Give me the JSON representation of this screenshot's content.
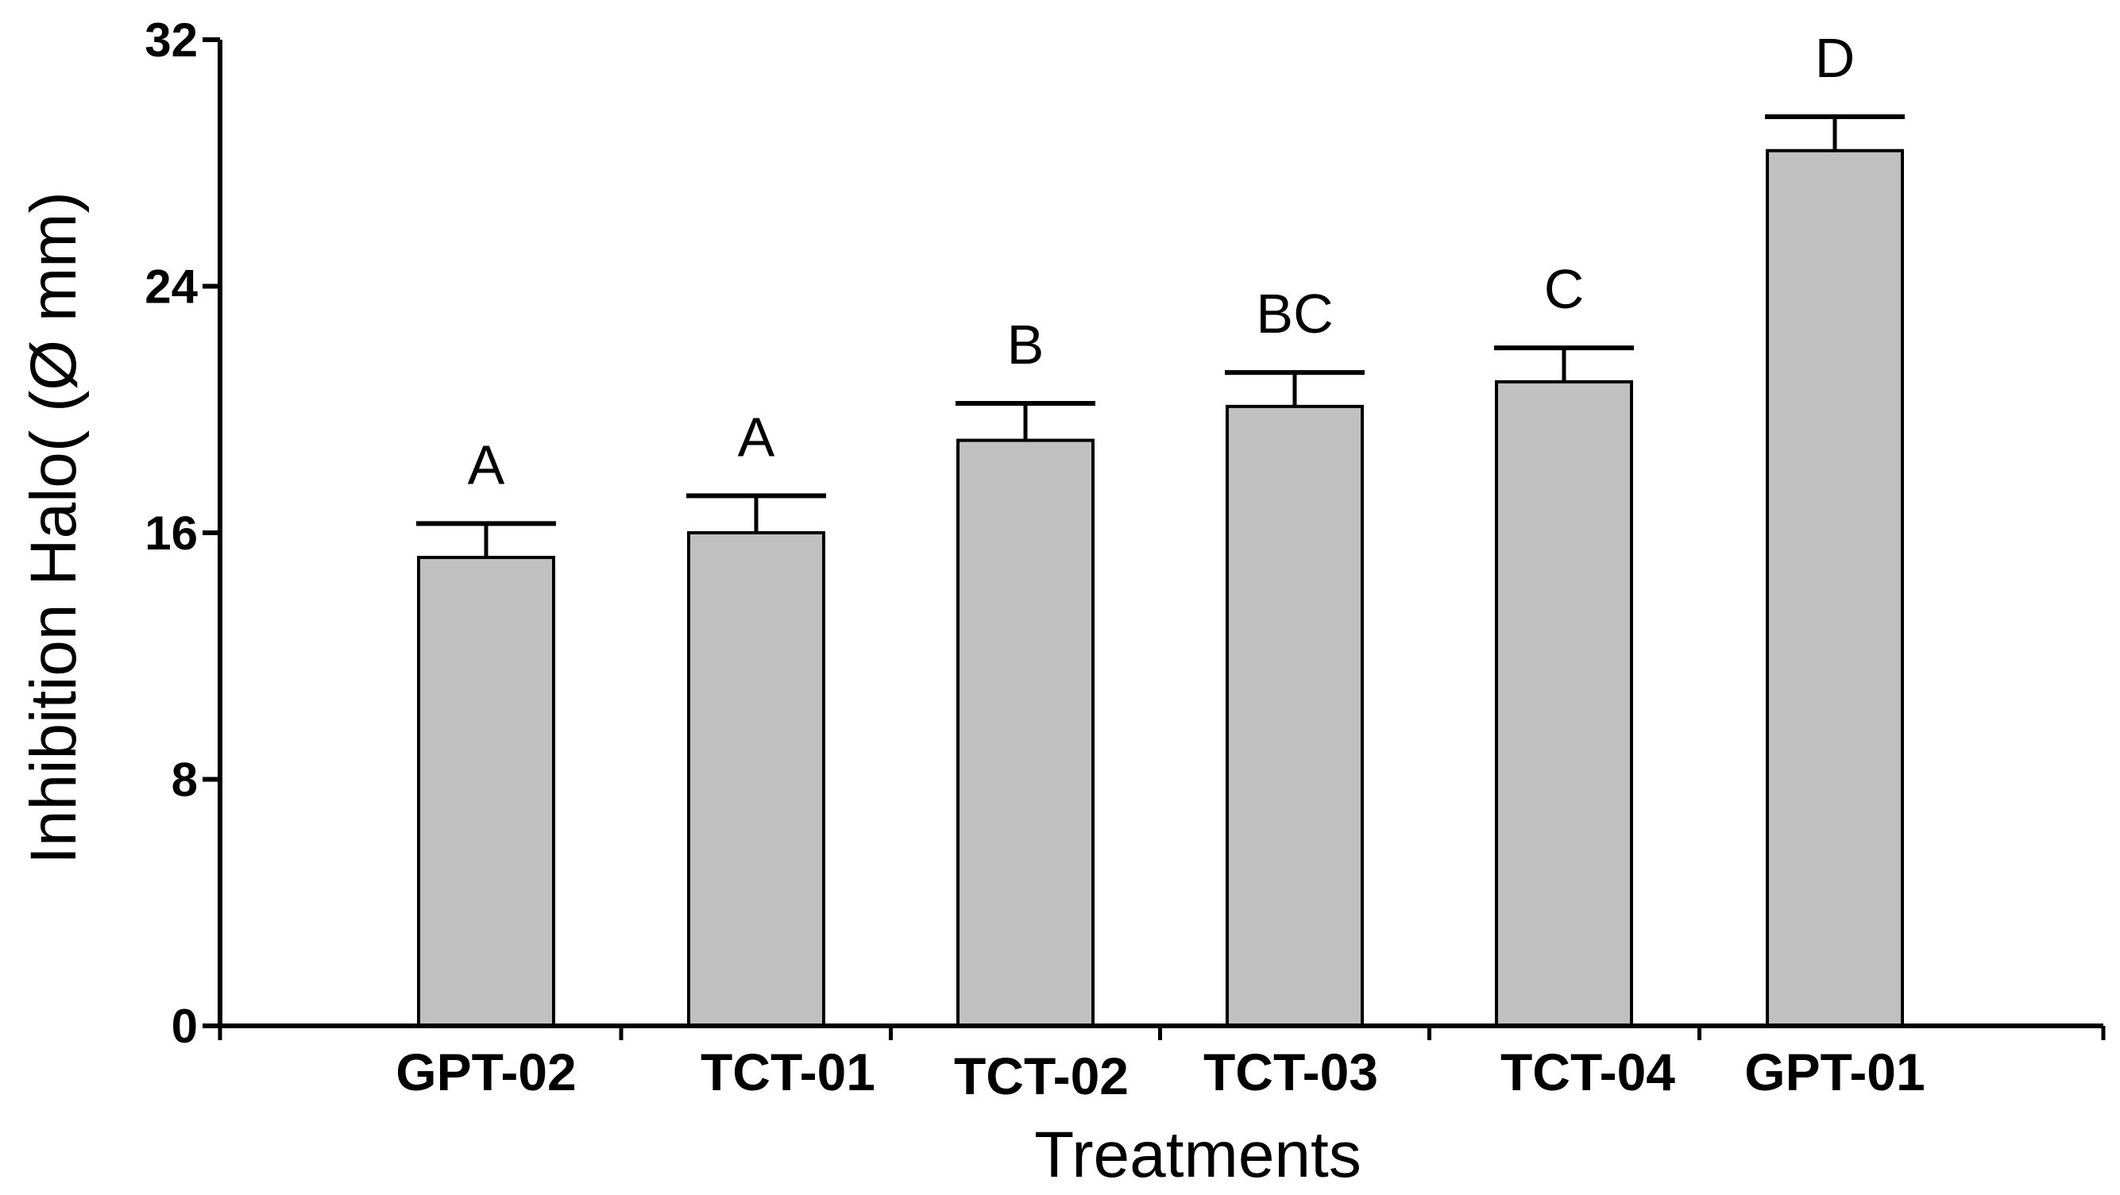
{
  "chart_data": {
    "type": "bar",
    "title": "",
    "xlabel": "Treatments",
    "ylabel": "Inhibition Halo( (Ø mm)",
    "ylim": [
      0,
      32
    ],
    "yticks": [
      0,
      8,
      16,
      24,
      32
    ],
    "categories": [
      "GPT-02",
      "TCT-01",
      "TCT-02",
      "TCT-03",
      "TCT-04",
      "GPT-01"
    ],
    "values": [
      15.2,
      16.0,
      19.0,
      20.1,
      20.9,
      28.4
    ],
    "errors": [
      1.1,
      1.2,
      1.2,
      1.1,
      1.1,
      1.1
    ],
    "significance": [
      "A",
      "A",
      "B",
      "BC",
      "C",
      "D"
    ],
    "bar_color": "#c0c0c0",
    "bar_edge_color": "#000000",
    "grid": false
  }
}
